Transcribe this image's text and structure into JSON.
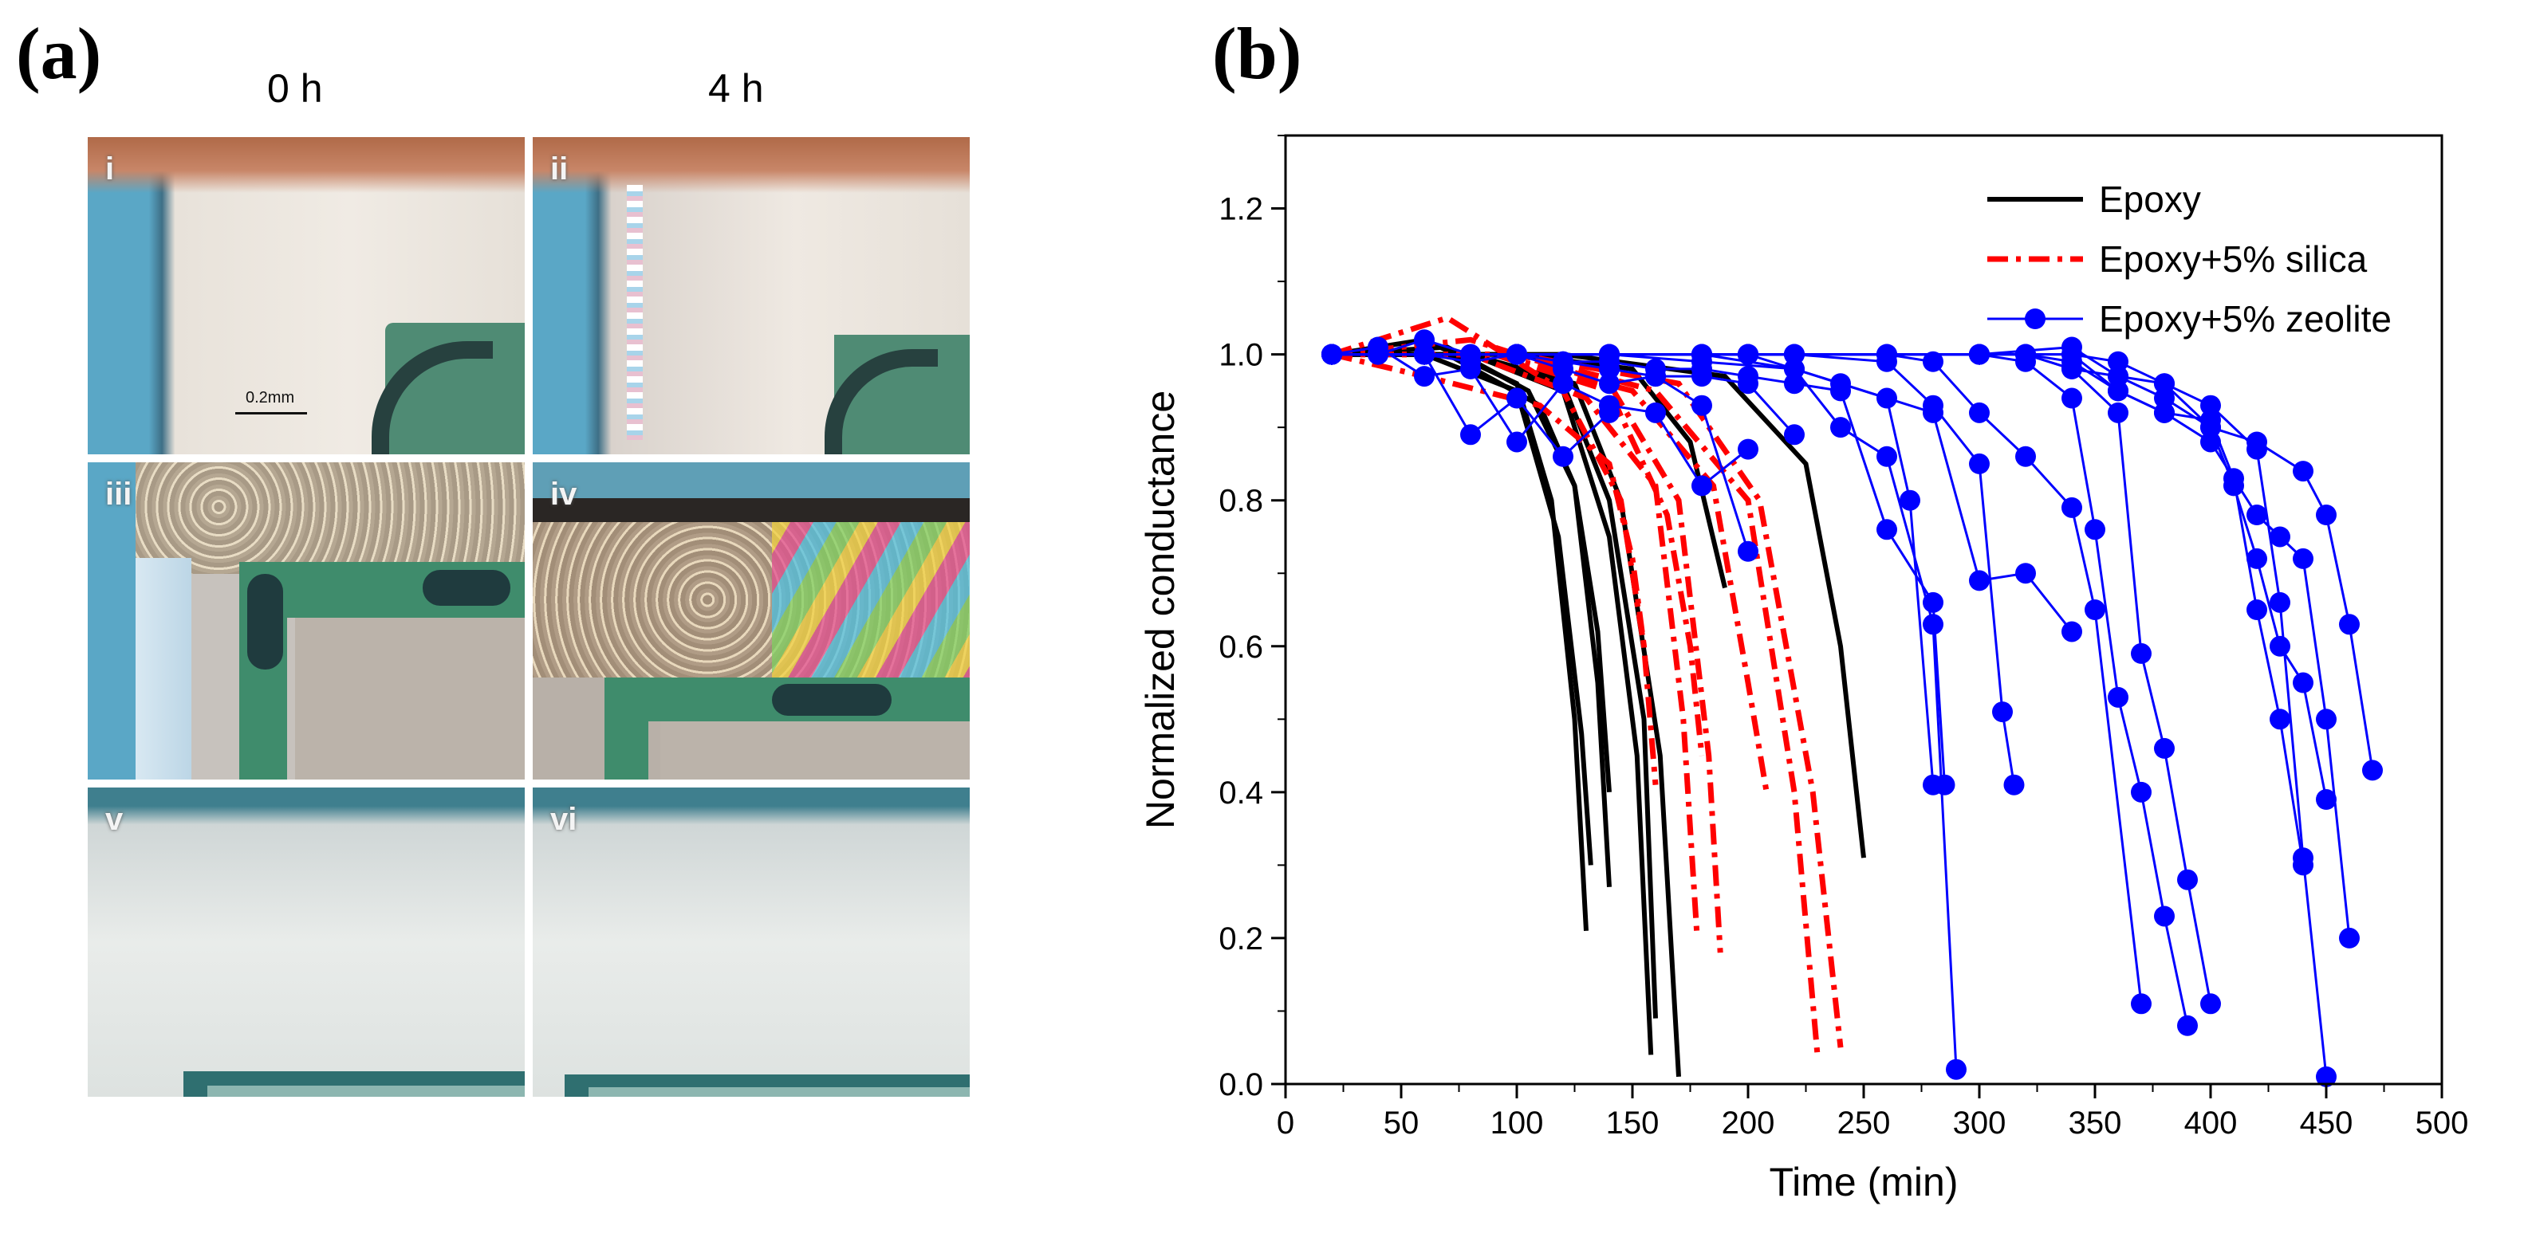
{
  "panels": {
    "a_label": "(a)",
    "b_label": "(b)",
    "col_0h": "0 h",
    "col_4h": "4 h",
    "scale_bar": "0.2mm",
    "micrographs": [
      {
        "id": "i",
        "label": "i"
      },
      {
        "id": "ii",
        "label": "ii"
      },
      {
        "id": "iii",
        "label": "iii"
      },
      {
        "id": "iv",
        "label": "iv"
      },
      {
        "id": "v",
        "label": "v"
      },
      {
        "id": "vi",
        "label": "vi"
      }
    ]
  },
  "colors": {
    "epoxy": "#000000",
    "silica": "#ff0000",
    "zeolite": "#0000ff"
  },
  "chart_data": {
    "type": "line",
    "title": "",
    "xlabel": "Time (min)",
    "ylabel": "Normalized conductance",
    "xlim": [
      0,
      500
    ],
    "ylim": [
      0,
      1.3
    ],
    "xticks": [
      0,
      50,
      100,
      150,
      200,
      250,
      300,
      350,
      400,
      450,
      500
    ],
    "yticks": [
      0.0,
      0.2,
      0.4,
      0.6,
      0.8,
      1.0,
      1.2
    ],
    "yticklabels": [
      "0.0",
      "0.2",
      "0.4",
      "0.6",
      "0.8",
      "1.0",
      "1.2"
    ],
    "legend": {
      "position": "top-right",
      "entries": [
        {
          "name": "Epoxy",
          "color": "#000000",
          "style": "solid"
        },
        {
          "name": "Epoxy+5% silica",
          "color": "#ff0000",
          "style": "dashdot"
        },
        {
          "name": "Epoxy+5% zeolite",
          "color": "#0000ff",
          "style": "markers"
        }
      ]
    },
    "series": [
      {
        "name": "Epoxy",
        "style": "solid",
        "color": "#000000",
        "x": [
          20,
          60,
          100,
          115,
          125,
          130
        ],
        "y": [
          1.0,
          1.02,
          0.96,
          0.8,
          0.5,
          0.21
        ]
      },
      {
        "name": "Epoxy",
        "style": "solid",
        "color": "#000000",
        "x": [
          20,
          60,
          100,
          118,
          128,
          132
        ],
        "y": [
          1.0,
          1.0,
          0.95,
          0.75,
          0.48,
          0.3
        ]
      },
      {
        "name": "Epoxy",
        "style": "solid",
        "color": "#000000",
        "x": [
          20,
          70,
          105,
          125,
          135,
          140
        ],
        "y": [
          1.0,
          1.01,
          0.95,
          0.82,
          0.55,
          0.27
        ]
      },
      {
        "name": "Epoxy",
        "style": "solid",
        "color": "#000000",
        "x": [
          20,
          70,
          110,
          125,
          135,
          140
        ],
        "y": [
          1.0,
          1.0,
          0.93,
          0.82,
          0.62,
          0.4
        ]
      },
      {
        "name": "Epoxy",
        "style": "solid",
        "color": "#000000",
        "x": [
          20,
          80,
          120,
          140,
          152,
          158
        ],
        "y": [
          1.0,
          1.0,
          0.95,
          0.75,
          0.45,
          0.04
        ]
      },
      {
        "name": "Epoxy",
        "style": "solid",
        "color": "#000000",
        "x": [
          20,
          80,
          120,
          140,
          155,
          160
        ],
        "y": [
          1.0,
          1.0,
          0.96,
          0.8,
          0.5,
          0.09
        ]
      },
      {
        "name": "Epoxy",
        "style": "solid",
        "color": "#000000",
        "x": [
          20,
          80,
          125,
          145,
          162,
          170
        ],
        "y": [
          1.0,
          1.0,
          0.96,
          0.8,
          0.45,
          0.01
        ]
      },
      {
        "name": "Epoxy",
        "style": "solid",
        "color": "#000000",
        "x": [
          20,
          100,
          150,
          175,
          190
        ],
        "y": [
          1.0,
          1.0,
          0.98,
          0.88,
          0.68
        ]
      },
      {
        "name": "Epoxy",
        "style": "solid",
        "color": "#000000",
        "x": [
          20,
          120,
          190,
          225,
          240,
          250
        ],
        "y": [
          1.0,
          1.0,
          0.97,
          0.85,
          0.6,
          0.31
        ]
      },
      {
        "name": "Epoxy+5% silica",
        "style": "dashdot",
        "color": "#ff0000",
        "x": [
          20,
          70,
          120,
          145,
          155,
          160
        ],
        "y": [
          1.0,
          1.05,
          0.95,
          0.8,
          0.6,
          0.41
        ]
      },
      {
        "name": "Epoxy+5% silica",
        "style": "dashdot",
        "color": "#ff0000",
        "x": [
          20,
          60,
          110,
          140,
          150,
          155
        ],
        "y": [
          1.0,
          0.97,
          0.93,
          0.85,
          0.72,
          0.6
        ]
      },
      {
        "name": "Epoxy+5% silica",
        "style": "dashdot",
        "color": "#ff0000",
        "x": [
          20,
          80,
          130,
          160,
          172,
          178
        ],
        "y": [
          1.0,
          1.0,
          0.94,
          0.82,
          0.5,
          0.2
        ]
      },
      {
        "name": "Epoxy+5% silica",
        "style": "dashdot",
        "color": "#ff0000",
        "x": [
          20,
          80,
          140,
          170,
          183,
          188
        ],
        "y": [
          1.0,
          1.02,
          0.96,
          0.8,
          0.45,
          0.18
        ]
      },
      {
        "name": "Epoxy+5% silica",
        "style": "dashdot",
        "color": "#ff0000",
        "x": [
          20,
          90,
          140,
          165,
          175,
          180
        ],
        "y": [
          1.0,
          1.0,
          0.95,
          0.78,
          0.6,
          0.45
        ]
      },
      {
        "name": "Epoxy+5% silica",
        "style": "dashdot",
        "color": "#ff0000",
        "x": [
          20,
          90,
          150,
          185,
          200,
          208
        ],
        "y": [
          1.0,
          1.0,
          0.95,
          0.82,
          0.55,
          0.4
        ]
      },
      {
        "name": "Epoxy+5% silica",
        "style": "dashdot",
        "color": "#ff0000",
        "x": [
          20,
          100,
          160,
          200,
          220,
          230
        ],
        "y": [
          1.0,
          1.0,
          0.95,
          0.8,
          0.4,
          0.04
        ]
      },
      {
        "name": "Epoxy+5% silica",
        "style": "dashdot",
        "color": "#ff0000",
        "x": [
          20,
          100,
          170,
          205,
          228,
          240
        ],
        "y": [
          1.0,
          1.0,
          0.96,
          0.8,
          0.4,
          0.05
        ]
      },
      {
        "name": "Epoxy+5% zeolite",
        "style": "markers",
        "color": "#0000ff",
        "x": [
          20,
          40,
          60,
          80,
          100,
          120,
          140
        ],
        "y": [
          1.0,
          1.0,
          1.0,
          0.89,
          0.94,
          0.86,
          0.92
        ]
      },
      {
        "name": "Epoxy+5% zeolite",
        "style": "markers",
        "color": "#0000ff",
        "x": [
          20,
          40,
          60,
          80,
          100,
          120,
          140,
          160,
          180,
          200
        ],
        "y": [
          1.0,
          1.01,
          0.97,
          0.98,
          0.88,
          0.96,
          0.93,
          0.92,
          0.82,
          0.87
        ]
      },
      {
        "name": "Epoxy+5% zeolite",
        "style": "markers",
        "color": "#0000ff",
        "x": [
          20,
          40,
          60,
          80,
          100,
          120,
          140,
          160,
          180,
          200
        ],
        "y": [
          1.0,
          1.0,
          1.02,
          1.0,
          1.0,
          0.98,
          0.96,
          0.97,
          0.93,
          0.73
        ]
      },
      {
        "name": "Epoxy+5% zeolite",
        "style": "markers",
        "color": "#0000ff",
        "x": [
          20,
          40,
          60,
          80,
          100,
          120,
          140,
          160,
          180,
          200,
          220
        ],
        "y": [
          1.0,
          1.0,
          1.0,
          0.99,
          1.0,
          0.99,
          0.98,
          0.97,
          0.97,
          0.96,
          0.89
        ]
      },
      {
        "name": "Epoxy+5% zeolite",
        "style": "markers",
        "color": "#0000ff",
        "x": [
          20,
          40,
          60,
          80,
          100,
          120,
          140,
          160,
          180,
          200,
          220,
          240,
          260,
          280,
          285
        ],
        "y": [
          1.0,
          1.0,
          1.0,
          1.0,
          1.0,
          0.99,
          0.99,
          0.98,
          0.98,
          0.97,
          0.96,
          0.95,
          0.76,
          0.66,
          0.41
        ]
      },
      {
        "name": "Epoxy+5% zeolite",
        "style": "markers",
        "color": "#0000ff",
        "x": [
          20,
          60,
          100,
          140,
          180,
          220,
          240,
          260,
          270,
          280
        ],
        "y": [
          1.0,
          1.0,
          1.0,
          1.0,
          0.99,
          0.98,
          0.96,
          0.94,
          0.8,
          0.41
        ]
      },
      {
        "name": "Epoxy+5% zeolite",
        "style": "markers",
        "color": "#0000ff",
        "x": [
          20,
          60,
          100,
          140,
          180,
          220,
          240,
          260,
          280,
          290
        ],
        "y": [
          1.0,
          1.0,
          1.0,
          1.0,
          1.0,
          0.98,
          0.9,
          0.86,
          0.63,
          0.02
        ]
      },
      {
        "name": "Epoxy+5% zeolite",
        "style": "markers",
        "color": "#0000ff",
        "x": [
          20,
          60,
          100,
          140,
          180,
          220,
          260,
          280,
          300,
          310,
          315
        ],
        "y": [
          1.0,
          1.0,
          1.0,
          1.0,
          1.0,
          1.0,
          0.99,
          0.93,
          0.85,
          0.51,
          0.41
        ]
      },
      {
        "name": "Epoxy+5% zeolite",
        "style": "markers",
        "color": "#0000ff",
        "x": [
          20,
          60,
          100,
          140,
          180,
          220,
          260,
          280,
          300,
          320,
          340,
          350,
          370
        ],
        "y": [
          1.0,
          1.0,
          1.0,
          1.0,
          1.0,
          1.0,
          1.0,
          0.99,
          0.92,
          0.86,
          0.79,
          0.65,
          0.11
        ]
      },
      {
        "name": "Epoxy+5% zeolite",
        "style": "markers",
        "color": "#0000ff",
        "x": [
          20,
          60,
          100,
          140,
          180,
          220,
          260,
          300,
          320,
          340,
          350,
          360,
          370,
          380,
          390
        ],
        "y": [
          1.0,
          1.0,
          1.0,
          1.0,
          1.0,
          1.0,
          1.0,
          1.0,
          0.99,
          0.94,
          0.76,
          0.53,
          0.4,
          0.23,
          0.08
        ]
      },
      {
        "name": "Epoxy+5% zeolite",
        "style": "markers",
        "color": "#0000ff",
        "x": [
          20,
          60,
          100,
          140,
          180,
          220,
          260,
          300,
          320,
          340,
          360,
          370,
          380,
          390,
          400
        ],
        "y": [
          1.0,
          1.0,
          1.0,
          1.0,
          1.0,
          1.0,
          1.0,
          1.0,
          1.0,
          0.98,
          0.92,
          0.59,
          0.46,
          0.28,
          0.11
        ]
      },
      {
        "name": "Epoxy+5% zeolite",
        "style": "markers",
        "color": "#0000ff",
        "x": [
          20,
          100,
          200,
          280,
          300,
          320,
          340
        ],
        "y": [
          1.0,
          1.0,
          1.0,
          0.92,
          0.69,
          0.7,
          0.62
        ]
      },
      {
        "name": "Epoxy+5% zeolite",
        "style": "markers",
        "color": "#0000ff",
        "x": [
          20,
          100,
          200,
          300,
          320,
          340,
          360,
          380,
          400,
          420,
          430,
          440,
          450
        ],
        "y": [
          1.0,
          1.0,
          1.0,
          1.0,
          1.0,
          0.98,
          0.97,
          0.96,
          0.93,
          0.87,
          0.66,
          0.31,
          0.01
        ]
      },
      {
        "name": "Epoxy+5% zeolite",
        "style": "markers",
        "color": "#0000ff",
        "x": [
          20,
          100,
          200,
          300,
          320,
          340,
          360,
          380,
          400,
          410,
          420,
          430,
          440
        ],
        "y": [
          1.0,
          1.0,
          1.0,
          1.0,
          1.0,
          0.99,
          0.95,
          0.92,
          0.91,
          0.83,
          0.65,
          0.5,
          0.3
        ]
      },
      {
        "name": "Epoxy+5% zeolite",
        "style": "markers",
        "color": "#0000ff",
        "x": [
          20,
          100,
          200,
          300,
          320,
          340,
          360,
          380,
          400,
          410,
          420,
          430,
          440,
          450
        ],
        "y": [
          1.0,
          1.0,
          1.0,
          1.0,
          1.0,
          1.0,
          0.99,
          0.96,
          0.9,
          0.82,
          0.72,
          0.6,
          0.55,
          0.39
        ]
      },
      {
        "name": "Epoxy+5% zeolite",
        "style": "markers",
        "color": "#0000ff",
        "x": [
          20,
          100,
          200,
          300,
          340,
          360,
          380,
          400,
          420,
          440,
          450,
          460,
          470
        ],
        "y": [
          1.0,
          1.0,
          1.0,
          1.0,
          1.01,
          0.97,
          0.94,
          0.9,
          0.88,
          0.84,
          0.78,
          0.63,
          0.43
        ]
      },
      {
        "name": "Epoxy+5% zeolite",
        "style": "markers",
        "color": "#0000ff",
        "x": [
          20,
          100,
          200,
          300,
          340,
          360,
          380,
          400,
          420,
          430,
          440,
          450,
          460
        ],
        "y": [
          1.0,
          1.0,
          1.0,
          1.0,
          1.0,
          0.95,
          0.92,
          0.88,
          0.78,
          0.75,
          0.72,
          0.5,
          0.2
        ]
      }
    ]
  }
}
